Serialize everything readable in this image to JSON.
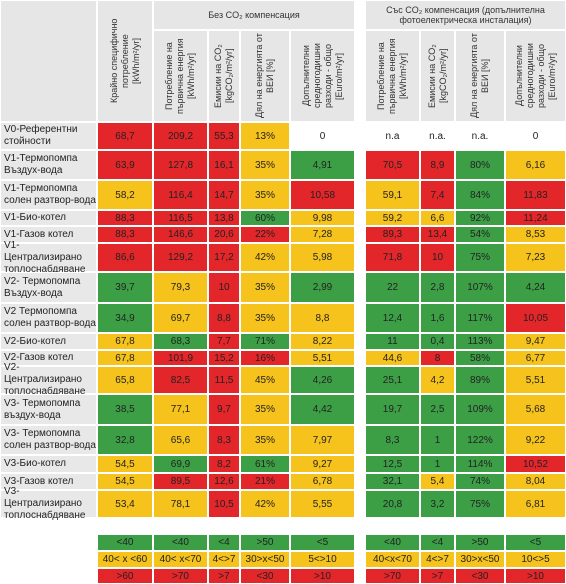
{
  "header": {
    "group1": "Без CO₂ компенсация",
    "group2": "Със CO₂ компенсация (допълнителна фотоелектрическа инсталация)",
    "columns": [
      "Крайно специфично потребление [kWh/m²/yr]",
      "Потребление на първична енергия [kWh/m²/yr]",
      "Емисии на CO₂ [kgCO₂/m²/yr]",
      "Дял на енергията от ВЕИ [%]",
      "Допълнителни средногодишни разходи - общо [Euro/m²/yr]",
      "Потребление на първична енергия [kWh/m²/yr]",
      "Емисии на CO₂ [kgCO₂/m²/yr]",
      "Дял на енергията от ВЕИ [%]",
      "Допълнителни средногодишни разходи - общо [Euro/m²/yr]"
    ]
  },
  "rows": [
    {
      "label": "V0-Референтни стойности",
      "values": [
        "68,7",
        "209,2",
        "55,3",
        "13%",
        "0",
        "n.a",
        "n.a.",
        "n.a.",
        "0"
      ],
      "fills": [
        "#e3262a",
        "#e3262a",
        "#e3262a",
        "#f6c21c",
        "#ffffff",
        "#ffffff",
        "#ffffff",
        "#ffffff",
        "#ffffff"
      ]
    },
    {
      "label": "V1-Термопомпа Въздух-вода",
      "values": [
        "63,9",
        "127,8",
        "16,1",
        "35%",
        "4,91",
        "70,5",
        "8,9",
        "80%",
        "6,16"
      ],
      "fills": [
        "#e3262a",
        "#e3262a",
        "#e3262a",
        "#f6c21c",
        "#3c9f46",
        "#e3262a",
        "#e3262a",
        "#3c9f46",
        "#f6c21c"
      ]
    },
    {
      "label": "V1-Термопомпа солен разтвор-вода",
      "values": [
        "58,2",
        "116,4",
        "14,7",
        "35%",
        "10,58",
        "59,1",
        "7,4",
        "84%",
        "11,83"
      ],
      "fills": [
        "#f6c21c",
        "#e3262a",
        "#e3262a",
        "#f6c21c",
        "#e3262a",
        "#f6c21c",
        "#e3262a",
        "#3c9f46",
        "#e3262a"
      ]
    },
    {
      "label": "V1-Био-котел",
      "values": [
        "88,3",
        "116,5",
        "13,8",
        "60%",
        "9,98",
        "59,2",
        "6,6",
        "92%",
        "11,24"
      ],
      "fills": [
        "#e3262a",
        "#e3262a",
        "#e3262a",
        "#3c9f46",
        "#f6c21c",
        "#f6c21c",
        "#f6c21c",
        "#3c9f46",
        "#e3262a"
      ]
    },
    {
      "label": "V1-Газов котел",
      "values": [
        "88,3",
        "146,6",
        "20,6",
        "22%",
        "7,28",
        "89,3",
        "13,4",
        "54%",
        "8,53"
      ],
      "fills": [
        "#e3262a",
        "#e3262a",
        "#e3262a",
        "#e3262a",
        "#f6c21c",
        "#e3262a",
        "#e3262a",
        "#3c9f46",
        "#f6c21c"
      ]
    },
    {
      "label": "V1- Централизирано топлоснабдяване",
      "values": [
        "86,6",
        "129,2",
        "17,2",
        "42%",
        "5,98",
        "71,8",
        "10",
        "75%",
        "7,23"
      ],
      "fills": [
        "#e3262a",
        "#e3262a",
        "#e3262a",
        "#f6c21c",
        "#f6c21c",
        "#e3262a",
        "#e3262a",
        "#3c9f46",
        "#f6c21c"
      ]
    },
    {
      "label": "V2- Термопомпа Въздух-вода",
      "values": [
        "39,7",
        "79,3",
        "10",
        "35%",
        "2,99",
        "22",
        "2,8",
        "107%",
        "4,24"
      ],
      "fills": [
        "#3c9f46",
        "#f6c21c",
        "#e3262a",
        "#f6c21c",
        "#3c9f46",
        "#3c9f46",
        "#3c9f46",
        "#3c9f46",
        "#3c9f46"
      ]
    },
    {
      "label": "V2 Термопомпа солен разтвор-вода",
      "values": [
        "34,9",
        "69,7",
        "8,8",
        "35%",
        "8,8",
        "12,4",
        "1,6",
        "117%",
        "10,05"
      ],
      "fills": [
        "#3c9f46",
        "#f6c21c",
        "#e3262a",
        "#f6c21c",
        "#f6c21c",
        "#3c9f46",
        "#3c9f46",
        "#3c9f46",
        "#e3262a"
      ]
    },
    {
      "label": "V2-Био-котел",
      "values": [
        "67,8",
        "68,3",
        "7,7",
        "71%",
        "8,22",
        "11",
        "0,4",
        "113%",
        "9,47"
      ],
      "fills": [
        "#f6c21c",
        "#3c9f46",
        "#e3262a",
        "#3c9f46",
        "#f6c21c",
        "#3c9f46",
        "#3c9f46",
        "#3c9f46",
        "#f6c21c"
      ]
    },
    {
      "label": "V2-Газов котел",
      "values": [
        "67,8",
        "101,9",
        "15,2",
        "16%",
        "5,51",
        "44,6",
        "8",
        "58%",
        "6,77"
      ],
      "fills": [
        "#f6c21c",
        "#e3262a",
        "#e3262a",
        "#e3262a",
        "#f6c21c",
        "#f6c21c",
        "#e3262a",
        "#3c9f46",
        "#f6c21c"
      ]
    },
    {
      "label": "V2- Централизирано топлоснабдяване",
      "values": [
        "65,8",
        "82,5",
        "11,5",
        "45%",
        "4,26",
        "25,1",
        "4,2",
        "89%",
        "5,51"
      ],
      "fills": [
        "#f6c21c",
        "#e3262a",
        "#e3262a",
        "#f6c21c",
        "#3c9f46",
        "#3c9f46",
        "#f6c21c",
        "#3c9f46",
        "#f6c21c"
      ]
    },
    {
      "label": "V3- Термопомпа въздух-вода",
      "values": [
        "38,5",
        "77,1",
        "9,7",
        "35%",
        "4,42",
        "19,7",
        "2,5",
        "109%",
        "5,68"
      ],
      "fills": [
        "#3c9f46",
        "#f6c21c",
        "#e3262a",
        "#f6c21c",
        "#3c9f46",
        "#3c9f46",
        "#3c9f46",
        "#3c9f46",
        "#f6c21c"
      ]
    },
    {
      "label": "V3- Термопомпа солен разтвор-вода",
      "values": [
        "32,8",
        "65,6",
        "8,3",
        "35%",
        "7,97",
        "8,3",
        "1",
        "122%",
        "9,22"
      ],
      "fills": [
        "#3c9f46",
        "#f6c21c",
        "#e3262a",
        "#f6c21c",
        "#f6c21c",
        "#3c9f46",
        "#3c9f46",
        "#3c9f46",
        "#f6c21c"
      ]
    },
    {
      "label": "V3-Био-котел",
      "values": [
        "54,5",
        "69,9",
        "8,2",
        "61%",
        "9,27",
        "12,5",
        "1",
        "114%",
        "10,52"
      ],
      "fills": [
        "#f6c21c",
        "#3c9f46",
        "#e3262a",
        "#3c9f46",
        "#f6c21c",
        "#3c9f46",
        "#3c9f46",
        "#3c9f46",
        "#e3262a"
      ]
    },
    {
      "label": "V3-Газов котел",
      "values": [
        "54,5",
        "89,5",
        "12,6",
        "21%",
        "6,78",
        "32,1",
        "5,4",
        "74%",
        "8,04"
      ],
      "fills": [
        "#f6c21c",
        "#e3262a",
        "#e3262a",
        "#e3262a",
        "#f6c21c",
        "#3c9f46",
        "#f6c21c",
        "#3c9f46",
        "#f6c21c"
      ]
    },
    {
      "label": "V3- Централизирано топлоснабдяване",
      "values": [
        "53,4",
        "78,1",
        "10,5",
        "42%",
        "5,55",
        "20,8",
        "3,2",
        "75%",
        "6,81"
      ],
      "fills": [
        "#f6c21c",
        "#f6c21c",
        "#e3262a",
        "#f6c21c",
        "#f6c21c",
        "#3c9f46",
        "#3c9f46",
        "#3c9f46",
        "#f6c21c"
      ]
    }
  ],
  "legend": [
    {
      "fill": "#3c9f46",
      "values": [
        "<40",
        "<40",
        "<4",
        ">50",
        "<5",
        "<40",
        "<4",
        ">50",
        "<5"
      ]
    },
    {
      "fill": "#f6c21c",
      "values": [
        "40< x <60",
        "40< x<70",
        "4<>7",
        "30>x<50",
        "5<>10",
        "40<x<70",
        "4<>7",
        "30>x<50",
        "10<>5"
      ]
    },
    {
      "fill": "#e3262a",
      "values": [
        ">60",
        ">70",
        ">7",
        "<30",
        ">10",
        ">70",
        ">7",
        "<30",
        ">10"
      ]
    }
  ]
}
